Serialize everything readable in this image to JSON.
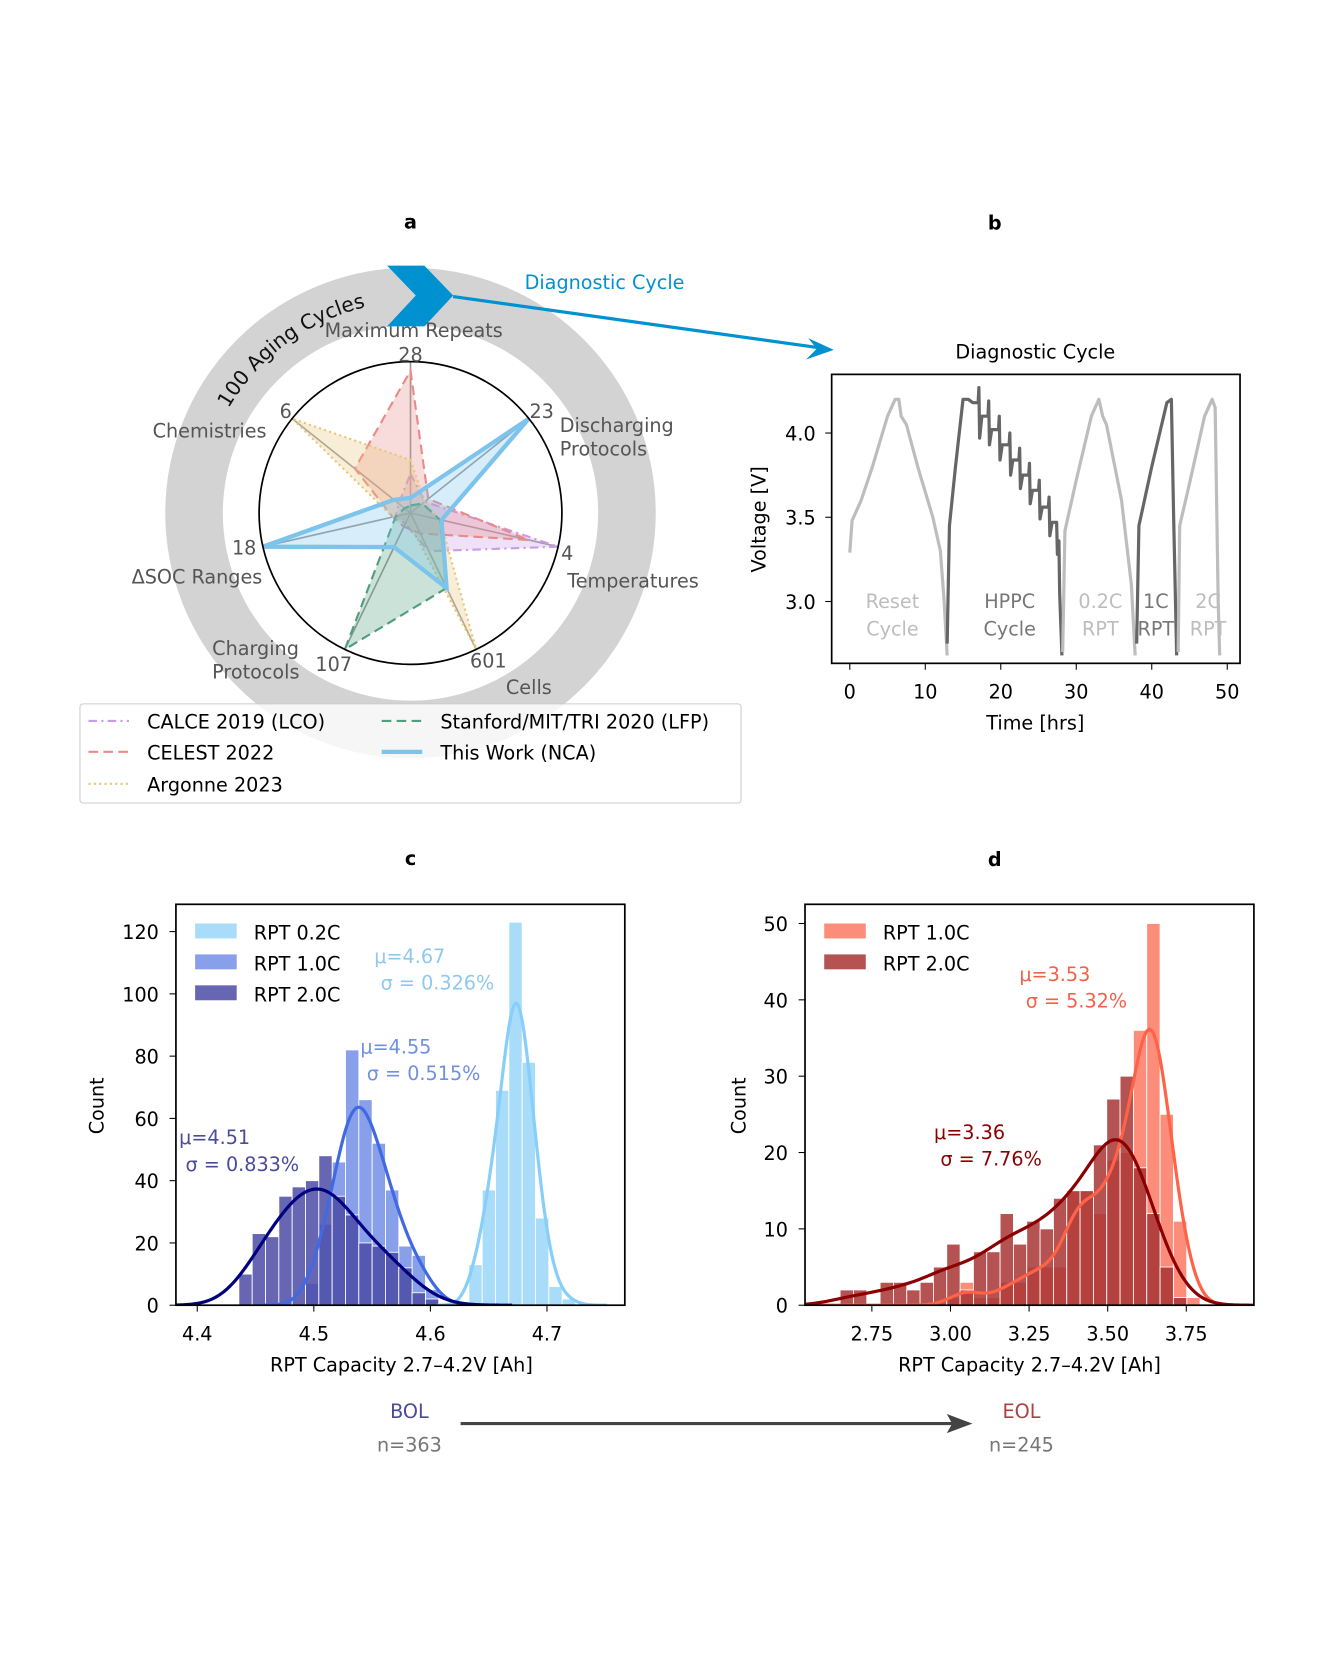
{
  "panel_labels": {
    "a": "a",
    "b": "b",
    "c": "c",
    "d": "d"
  },
  "panel_a": {
    "ring_label": "100 Aging Cycles",
    "diagnostic_label": "Diagnostic Cycle",
    "colors": {
      "ring": "#d3d3d3",
      "diagnostic": "#0092d0"
    }
  },
  "chart_data": [
    {
      "type": "radar",
      "axes": [
        {
          "label": "Maximum Repeats",
          "max_label": "28"
        },
        {
          "label": "Discharging Protocols",
          "max_label": "23"
        },
        {
          "label": "Temperatures",
          "max_label": "4"
        },
        {
          "label": "Cells",
          "max_label": "601"
        },
        {
          "label": "Charging Protocols",
          "max_label": "107"
        },
        {
          "label": "ΔSOC Ranges",
          "max_label": "18"
        },
        {
          "label": "Chemistries",
          "max_label": "6"
        }
      ],
      "series": [
        {
          "name": "CALCE 2019 (LCO)",
          "color": "#c99be8",
          "style": "dashdot",
          "normalized_values": [
            0.26,
            0.12,
            1.0,
            0.28,
            0.08,
            0.1,
            0.1
          ]
        },
        {
          "name": "CELEST 2022",
          "color": "#e88a8a",
          "style": "dashed",
          "normalized_values": [
            0.94,
            0.15,
            0.8,
            0.15,
            0.1,
            0.12,
            0.47
          ]
        },
        {
          "name": "Argonne 2023",
          "color": "#e9c77a",
          "style": "dotted",
          "normalized_values": [
            0.35,
            0.12,
            0.2,
            1.0,
            0.05,
            0.12,
            1.0
          ]
        },
        {
          "name": "Stanford/MIT/TRI 2020 (LFP)",
          "color": "#4f9e7e",
          "style": "dashed",
          "normalized_values": [
            0.05,
            0.1,
            0.2,
            0.55,
            1.0,
            0.1,
            0.05
          ]
        },
        {
          "name": "This Work (NCA)",
          "color": "#7cc4ec",
          "style": "solid",
          "normalized_values": [
            0.1,
            1.0,
            0.21,
            0.55,
            0.25,
            1.0,
            0.14
          ]
        }
      ],
      "legend_location": "bottom"
    },
    {
      "type": "line",
      "title": "Diagnostic Cycle",
      "xlabel": "Time [hrs]",
      "ylabel": "Voltage [V]",
      "xlim": [
        -2.4,
        51.7
      ],
      "ylim": [
        2.63,
        4.35
      ],
      "xticks": [
        "0",
        "10",
        "20",
        "30",
        "40",
        "50"
      ],
      "yticks": [
        "3.0",
        "3.5",
        "4.0"
      ],
      "segments": [
        {
          "label": "Reset Cycle",
          "color": "#bdbdbd",
          "points": [
            [
              0,
              3.29
            ],
            [
              0.3,
              3.48
            ],
            [
              1.5,
              3.6
            ],
            [
              3,
              3.8
            ],
            [
              5,
              4.1
            ],
            [
              6,
              4.2
            ],
            [
              6.5,
              4.2
            ],
            [
              6.8,
              4.1
            ],
            [
              7.5,
              4.05
            ],
            [
              9,
              3.8
            ],
            [
              11,
              3.5
            ],
            [
              12,
              3.3
            ],
            [
              12.5,
              3.0
            ],
            [
              12.9,
              2.68
            ]
          ]
        },
        {
          "label": "HPPC Cycle",
          "color": "#666666",
          "points": [
            [
              12.9,
              2.75
            ],
            [
              13.2,
              3.45
            ],
            [
              14,
              3.8
            ],
            [
              15,
              4.2
            ],
            [
              15.7,
              4.2
            ],
            [
              16.3,
              4.18
            ],
            [
              17,
              4.18
            ],
            [
              17.1,
              4.27
            ],
            [
              17.2,
              3.97
            ],
            [
              17.5,
              4.1
            ],
            [
              18.3,
              4.1
            ],
            [
              18.4,
              4.19
            ],
            [
              18.5,
              3.93
            ],
            [
              18.8,
              4.02
            ],
            [
              19.7,
              4.02
            ],
            [
              19.8,
              4.1
            ],
            [
              19.9,
              3.84
            ],
            [
              20.2,
              3.93
            ],
            [
              21.1,
              3.93
            ],
            [
              21.2,
              4.0
            ],
            [
              21.3,
              3.75
            ],
            [
              21.6,
              3.84
            ],
            [
              22.4,
              3.84
            ],
            [
              22.5,
              3.91
            ],
            [
              22.6,
              3.67
            ],
            [
              22.9,
              3.75
            ],
            [
              23.7,
              3.75
            ],
            [
              23.8,
              3.82
            ],
            [
              23.9,
              3.58
            ],
            [
              24.2,
              3.66
            ],
            [
              25,
              3.66
            ],
            [
              25.1,
              3.72
            ],
            [
              25.2,
              3.49
            ],
            [
              25.5,
              3.56
            ],
            [
              26.3,
              3.56
            ],
            [
              26.4,
              3.62
            ],
            [
              26.5,
              3.39
            ],
            [
              26.8,
              3.47
            ],
            [
              27.4,
              3.47
            ],
            [
              27.5,
              3.28
            ],
            [
              27.6,
              3.3
            ],
            [
              27.7,
              3.36
            ],
            [
              27.8,
              3.05
            ],
            [
              28.1,
              2.68
            ]
          ]
        },
        {
          "label": "0.2C RPT",
          "color": "#bdbdbd",
          "points": [
            [
              28.2,
              2.7
            ],
            [
              28.5,
              3.42
            ],
            [
              30,
              3.72
            ],
            [
              32,
              4.1
            ],
            [
              33,
              4.2
            ],
            [
              33.5,
              4.1
            ],
            [
              34,
              4.05
            ],
            [
              36,
              3.6
            ],
            [
              37.3,
              3.1
            ],
            [
              37.8,
              2.68
            ]
          ]
        },
        {
          "label": "1C RPT",
          "color": "#666666",
          "points": [
            [
              38,
              2.75
            ],
            [
              38.3,
              3.45
            ],
            [
              40,
              3.8
            ],
            [
              42,
              4.18
            ],
            [
              42.6,
              4.2
            ],
            [
              42.9,
              3.5
            ],
            [
              43.3,
              2.68
            ]
          ]
        },
        {
          "label": "2C RPT",
          "color": "#bdbdbd",
          "points": [
            [
              43.5,
              2.7
            ],
            [
              43.7,
              3.45
            ],
            [
              45,
              3.7
            ],
            [
              47,
              4.1
            ],
            [
              48,
              4.2
            ],
            [
              48.4,
              4.15
            ],
            [
              48.8,
              3.0
            ],
            [
              49,
              2.68
            ]
          ]
        }
      ],
      "region_labels": [
        {
          "line1": "Reset",
          "line2": "Cycle",
          "color": "#bdbdbd"
        },
        {
          "line1": "HPPC",
          "line2": "Cycle",
          "color": "#777777"
        },
        {
          "line1": "0.2C",
          "line2": "RPT",
          "color": "#bdbdbd"
        },
        {
          "line1": "1C",
          "line2": "RPT",
          "color": "#777777"
        },
        {
          "line1": "2C",
          "line2": "RPT",
          "color": "#bdbdbd"
        }
      ]
    },
    {
      "type": "histogram",
      "xlabel": "RPT Capacity 2.7–4.2V [Ah]",
      "ylabel": "Count",
      "xlim": [
        4.382,
        4.767
      ],
      "ylim": [
        0,
        129
      ],
      "xticks": [
        "4.4",
        "4.5",
        "4.6",
        "4.7"
      ],
      "yticks": [
        "0",
        "20",
        "40",
        "60",
        "80",
        "100",
        "120"
      ],
      "legend_location": "upper-left",
      "series": [
        {
          "name": "RPT 0.2C",
          "bar_color": "#a9dcf8",
          "line_color": "#87cefa",
          "bin_start": 4.633,
          "bin_width": 0.01143,
          "counts": [
            13,
            37,
            69,
            123,
            78,
            28,
            6,
            2
          ],
          "annotation": {
            "mu": "μ=4.67",
            "sigma": "σ = 0.326%"
          }
        },
        {
          "name": "RPT 1.0C",
          "bar_color": "#7b95e7",
          "line_color": "#4169e1",
          "bin_start": 4.4929,
          "bin_width": 0.01143,
          "counts": [
            7,
            26,
            46,
            82,
            66,
            52,
            37,
            19,
            16,
            5
          ],
          "annotation": {
            "mu": "μ=4.55",
            "sigma": "σ = 0.515%"
          }
        },
        {
          "name": "RPT 2.0C",
          "bar_color": "#4b4ba6",
          "line_color": "#000080",
          "bin_start": 4.4357,
          "bin_width": 0.01143,
          "counts": [
            10,
            23,
            22,
            35,
            38,
            40,
            48,
            35,
            29,
            20,
            19,
            17,
            12,
            4,
            2
          ],
          "annotation": {
            "mu": "μ=4.51",
            "sigma": "σ = 0.833%"
          }
        }
      ],
      "annotation_colors": [
        "#8ec9ee",
        "#7090e0",
        "#4b4b9b"
      ]
    },
    {
      "type": "histogram",
      "xlabel": "RPT Capacity 2.7–4.2V [Ah]",
      "ylabel": "Count",
      "xlim": [
        2.535,
        3.98
      ],
      "ylim": [
        0,
        52.7
      ],
      "xticks": [
        "2.75",
        "3.00",
        "3.25",
        "3.50",
        "3.75"
      ],
      "yticks": [
        "0",
        "10",
        "20",
        "30",
        "40",
        "50"
      ],
      "legend_location": "upper-left",
      "series": [
        {
          "name": "RPT 1.0C",
          "bar_color": "#fc8d7b",
          "line_color": "#ff6347",
          "bin_start": 2.649,
          "bin_width": 0.0424,
          "counts": [
            0,
            0,
            0,
            0,
            0,
            0,
            0,
            0,
            1,
            3,
            1,
            1,
            3,
            3,
            5,
            5,
            5,
            15,
            15,
            12,
            19,
            20,
            36,
            50,
            25,
            11,
            1
          ],
          "annotation": {
            "mu": "μ=3.53",
            "sigma": "σ = 5.32%"
          }
        },
        {
          "name": "RPT 2.0C",
          "bar_color": "#a83434",
          "line_color": "#8b0000",
          "bin_start": 2.649,
          "bin_width": 0.0424,
          "counts": [
            2,
            2,
            0,
            3,
            3,
            2,
            3,
            5,
            8,
            2,
            7,
            7,
            12,
            8,
            11,
            10,
            14,
            15,
            15,
            21,
            27,
            30,
            18,
            12,
            5,
            1
          ],
          "annotation": {
            "mu": "μ=3.36",
            "sigma": "σ = 7.76%"
          }
        }
      ],
      "annotation_colors": [
        "#f4614a",
        "#8b0000"
      ]
    }
  ],
  "footer": {
    "bol": "BOL",
    "bol_n": "n=363",
    "bol_color": "#4b4b9b",
    "eol": "EOL",
    "eol_n": "n=245",
    "eol_color": "#b04040",
    "arrow_color": "#444444"
  }
}
